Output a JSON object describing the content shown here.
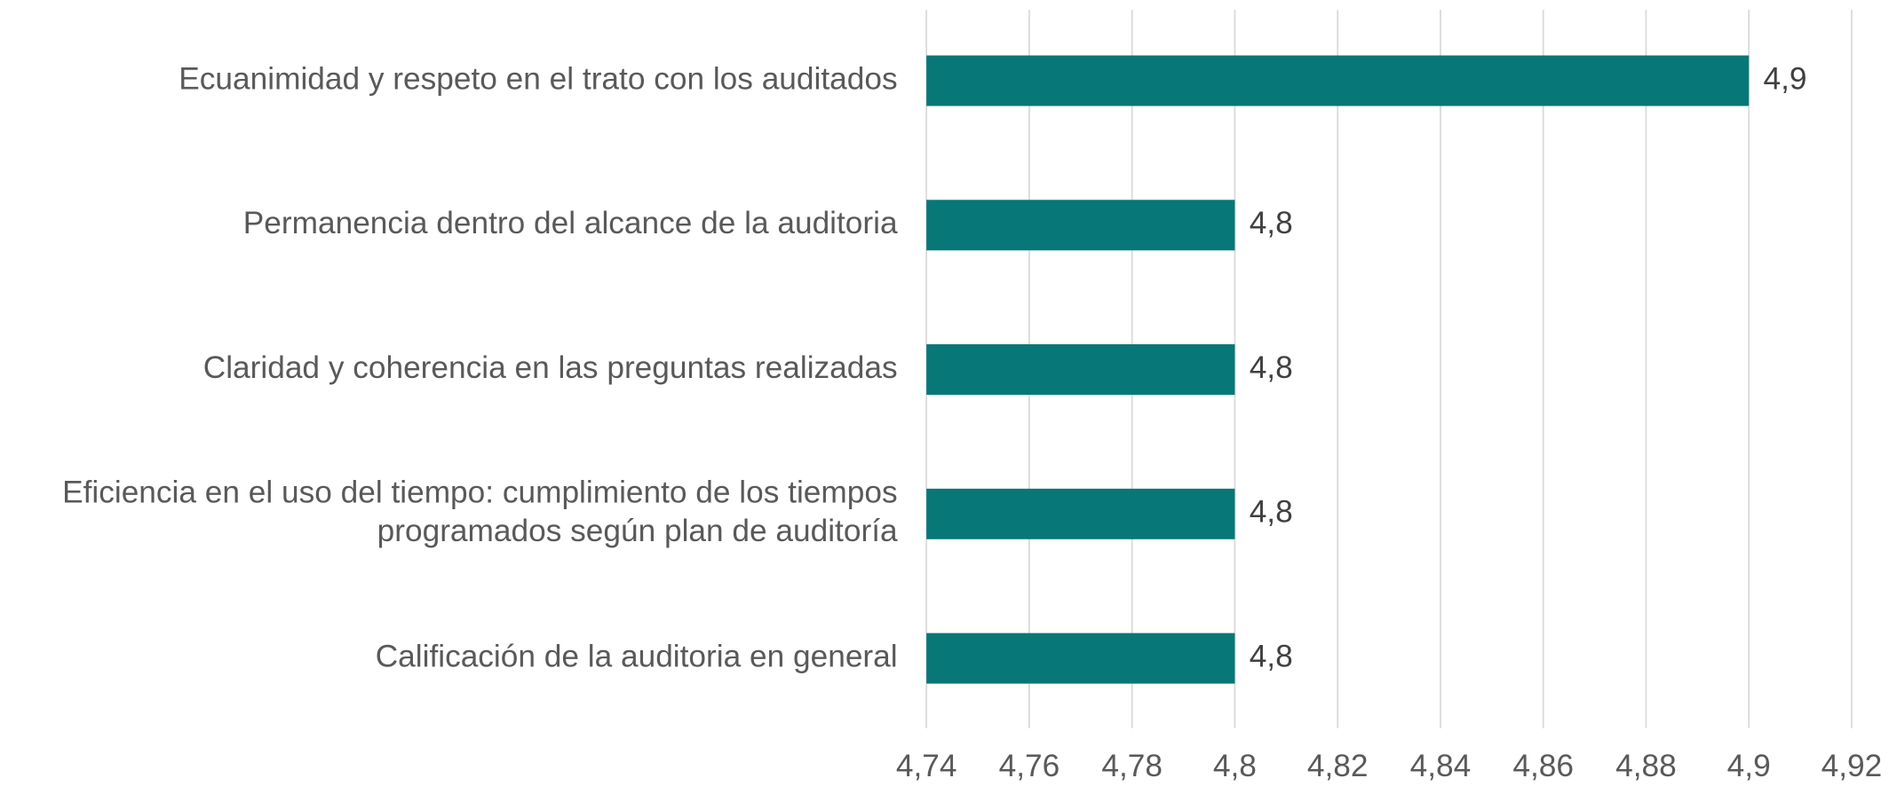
{
  "chart_data": {
    "type": "barh",
    "categories": [
      "Ecuanimidad y respeto en el trato con los auditados",
      "Permanencia dentro del alcance de la auditoria",
      "Claridad y coherencia en las preguntas realizadas",
      "Eficiencia en el uso del tiempo: cumplimiento de los tiempos\nprogramados según plan de auditoría",
      "Calificación de la auditoria en general"
    ],
    "values": [
      4.9,
      4.8,
      4.8,
      4.8,
      4.8
    ],
    "value_labels": [
      "4,9",
      "4,8",
      "4,8",
      "4,8",
      "4,8"
    ],
    "color": "#077777",
    "xlim": [
      4.74,
      4.92
    ],
    "xticks": [
      {
        "value": 4.74,
        "label": "4,74"
      },
      {
        "value": 4.76,
        "label": "4,76"
      },
      {
        "value": 4.78,
        "label": "4,78"
      },
      {
        "value": 4.8,
        "label": "4,8"
      },
      {
        "value": 4.82,
        "label": "4,82"
      },
      {
        "value": 4.84,
        "label": "4,84"
      },
      {
        "value": 4.86,
        "label": "4,86"
      },
      {
        "value": 4.88,
        "label": "4,88"
      },
      {
        "value": 4.9,
        "label": "4,9"
      },
      {
        "value": 4.92,
        "label": "4,92"
      }
    ],
    "grid": true
  }
}
